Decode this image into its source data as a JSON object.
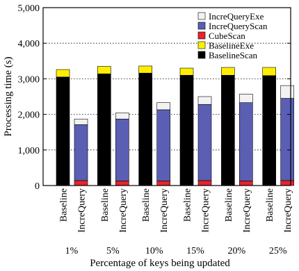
{
  "chart_data": {
    "type": "bar",
    "stacked": true,
    "ylabel": "Processing time (s)",
    "xlabel": "Percentage of keys being updated",
    "ylim": [
      0,
      5000
    ],
    "yticks": [
      0,
      1000,
      2000,
      3000,
      4000,
      5000
    ],
    "ytick_labels": [
      "0",
      "1,000",
      "2,000",
      "3,000",
      "4,000",
      "5,000"
    ],
    "grid": "horizontal dotted",
    "legend_position": "top-right",
    "groups": [
      "1%",
      "5%",
      "10%",
      "15%",
      "20%",
      "25%"
    ],
    "bar_labels": [
      "Baseline",
      "IncreQuery"
    ],
    "series": [
      {
        "name": "BaselineScan",
        "color": "#000000"
      },
      {
        "name": "BaselineExe",
        "color": "#ffee00"
      },
      {
        "name": "CubeScan",
        "color": "#e8232b"
      },
      {
        "name": "IncreQueryScan",
        "color": "#5a5fb4"
      },
      {
        "name": "IncreQueryExe",
        "color": "#f2f2f2"
      }
    ],
    "legend_order": [
      "IncreQueryExe",
      "IncreQueryScan",
      "CubeScan",
      "BaselineExe",
      "BaselineScan"
    ],
    "bars": [
      {
        "group": "1%",
        "label": "Baseline",
        "segments": {
          "BaselineScan": 3050,
          "BaselineExe": 210
        }
      },
      {
        "group": "1%",
        "label": "IncreQuery",
        "segments": {
          "CubeScan": 140,
          "IncreQueryScan": 1570,
          "IncreQueryExe": 160
        }
      },
      {
        "group": "5%",
        "label": "Baseline",
        "segments": {
          "BaselineScan": 3140,
          "BaselineExe": 210
        }
      },
      {
        "group": "5%",
        "label": "IncreQuery",
        "segments": {
          "CubeScan": 130,
          "IncreQueryScan": 1740,
          "IncreQueryExe": 170
        }
      },
      {
        "group": "10%",
        "label": "Baseline",
        "segments": {
          "BaselineScan": 3160,
          "BaselineExe": 200
        }
      },
      {
        "group": "10%",
        "label": "IncreQuery",
        "segments": {
          "CubeScan": 130,
          "IncreQueryScan": 2000,
          "IncreQueryExe": 200
        }
      },
      {
        "group": "15%",
        "label": "Baseline",
        "segments": {
          "BaselineScan": 3100,
          "BaselineExe": 200
        }
      },
      {
        "group": "15%",
        "label": "IncreQuery",
        "segments": {
          "CubeScan": 140,
          "IncreQueryScan": 2140,
          "IncreQueryExe": 220
        }
      },
      {
        "group": "20%",
        "label": "Baseline",
        "segments": {
          "BaselineScan": 3100,
          "BaselineExe": 220
        }
      },
      {
        "group": "20%",
        "label": "IncreQuery",
        "segments": {
          "CubeScan": 130,
          "IncreQueryScan": 2200,
          "IncreQueryExe": 240
        }
      },
      {
        "group": "25%",
        "label": "Baseline",
        "segments": {
          "BaselineScan": 3090,
          "BaselineExe": 230
        }
      },
      {
        "group": "25%",
        "label": "IncreQuery",
        "segments": {
          "CubeScan": 140,
          "IncreQueryScan": 2310,
          "IncreQueryExe": 360
        }
      }
    ]
  }
}
